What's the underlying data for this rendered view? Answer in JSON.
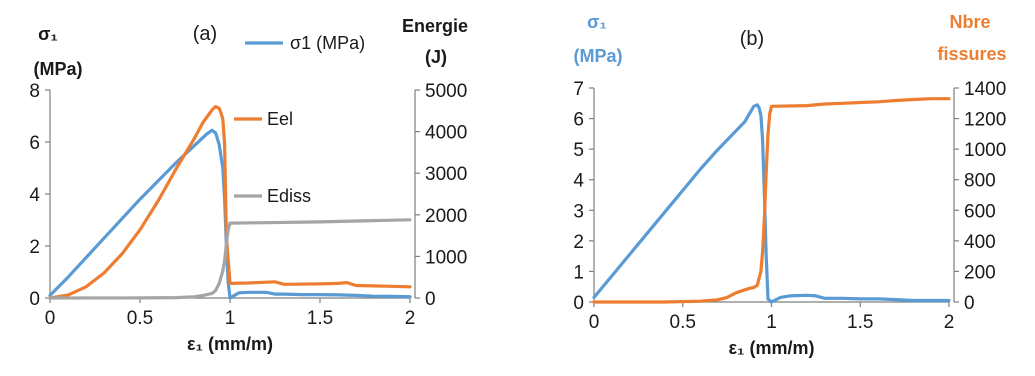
{
  "chart_data": [
    {
      "type": "line",
      "panel_label": "(a)",
      "xlabel": "ε₁ (mm/m)",
      "x_ticks": [
        "0",
        "0.5",
        "1",
        "1.5",
        "2"
      ],
      "xlim": [
        0,
        2
      ],
      "ylabel_left": [
        "σ₁",
        "(MPa)"
      ],
      "ylim_left": [
        0,
        8
      ],
      "y_ticks_left": [
        "0",
        "2",
        "4",
        "6",
        "8"
      ],
      "ylabel_right": [
        "Energie",
        "(J)"
      ],
      "ylim_right": [
        0,
        5000
      ],
      "y_ticks_right": [
        "0",
        "1000",
        "2000",
        "3000",
        "4000",
        "5000"
      ],
      "legend": [
        "σ1 (MPa)"
      ],
      "grid": false,
      "series": [
        {
          "name": "σ1 (MPa)",
          "axis": "left",
          "color": "#5b9bd5",
          "x": [
            0,
            0.1,
            0.2,
            0.3,
            0.4,
            0.5,
            0.6,
            0.7,
            0.8,
            0.87,
            0.9,
            0.92,
            0.94,
            0.96,
            0.97,
            0.98,
            0.99,
            1.0,
            1.05,
            1.1,
            1.2,
            1.25,
            1.3,
            1.4,
            1.5,
            1.6,
            1.7,
            1.8,
            1.9,
            2.0
          ],
          "y": [
            0.1,
            0.8,
            1.55,
            2.3,
            3.05,
            3.8,
            4.5,
            5.2,
            5.85,
            6.3,
            6.45,
            6.35,
            5.9,
            5.0,
            3.8,
            2.0,
            0.6,
            0.0,
            0.2,
            0.22,
            0.22,
            0.15,
            0.15,
            0.13,
            0.13,
            0.12,
            0.1,
            0.07,
            0.06,
            0.05
          ]
        },
        {
          "name": "Eel",
          "axis": "right",
          "color": "#ed7d31",
          "x": [
            0,
            0.1,
            0.2,
            0.3,
            0.4,
            0.5,
            0.6,
            0.7,
            0.8,
            0.85,
            0.9,
            0.92,
            0.94,
            0.95,
            0.96,
            0.97,
            0.98,
            1.0,
            1.1,
            1.25,
            1.3,
            1.5,
            1.6,
            1.65,
            1.7,
            1.8,
            2.0
          ],
          "y": [
            0,
            70,
            270,
            600,
            1060,
            1640,
            2330,
            3100,
            3820,
            4220,
            4520,
            4600,
            4560,
            4450,
            4300,
            3700,
            1500,
            350,
            360,
            390,
            330,
            340,
            350,
            370,
            300,
            290,
            270
          ]
        },
        {
          "name": "Ediss",
          "axis": "right",
          "color": "#a5a5a5",
          "x": [
            0,
            0.5,
            0.7,
            0.8,
            0.85,
            0.9,
            0.92,
            0.94,
            0.96,
            0.97,
            0.98,
            0.99,
            1.0,
            1.2,
            1.5,
            1.8,
            2.0
          ],
          "y": [
            0,
            2,
            10,
            30,
            60,
            110,
            180,
            350,
            650,
            900,
            1300,
            1650,
            1800,
            1810,
            1830,
            1860,
            1880
          ]
        }
      ],
      "annotations": [
        "Eel",
        "Ediss"
      ]
    },
    {
      "type": "line",
      "panel_label": "(b)",
      "xlabel": "ε₁ (mm/m)",
      "x_ticks": [
        "0",
        "0.5",
        "1",
        "1.5",
        "2"
      ],
      "xlim": [
        0,
        2
      ],
      "ylabel_left": [
        "σ₁",
        "(MPa)"
      ],
      "ylim_left": [
        0,
        7
      ],
      "y_ticks_left": [
        "0",
        "1",
        "2",
        "3",
        "4",
        "5",
        "6",
        "7"
      ],
      "ylabel_right": [
        "Nbre",
        "fissures"
      ],
      "ylim_right": [
        0,
        1400
      ],
      "y_ticks_right": [
        "0",
        "200",
        "400",
        "600",
        "800",
        "1000",
        "1200",
        "1400"
      ],
      "grid": false,
      "series": [
        {
          "axis": "left",
          "color": "#5b9bd5",
          "x": [
            0,
            0.1,
            0.2,
            0.3,
            0.4,
            0.5,
            0.6,
            0.7,
            0.8,
            0.85,
            0.9,
            0.92,
            0.93,
            0.94,
            0.95,
            0.96,
            0.97,
            0.98,
            1.0,
            1.05,
            1.1,
            1.2,
            1.25,
            1.3,
            1.4,
            1.5,
            1.6,
            1.7,
            1.8,
            1.9,
            2.0
          ],
          "y": [
            0.15,
            0.85,
            1.55,
            2.25,
            2.95,
            3.65,
            4.35,
            5.0,
            5.6,
            5.9,
            6.4,
            6.45,
            6.35,
            6.1,
            5.3,
            3.5,
            1.5,
            0.1,
            0.0,
            0.15,
            0.2,
            0.22,
            0.2,
            0.12,
            0.12,
            0.1,
            0.1,
            0.08,
            0.05,
            0.05,
            0.05
          ]
        },
        {
          "axis": "right",
          "color": "#ed7d31",
          "x": [
            0,
            0.4,
            0.6,
            0.7,
            0.75,
            0.8,
            0.85,
            0.88,
            0.9,
            0.92,
            0.94,
            0.95,
            0.96,
            0.97,
            0.98,
            0.99,
            1.0,
            1.2,
            1.3,
            1.4,
            1.5,
            1.6,
            1.7,
            1.8,
            1.9,
            2.0
          ],
          "y": [
            0,
            0,
            5,
            15,
            30,
            60,
            80,
            90,
            95,
            110,
            200,
            330,
            550,
            850,
            1100,
            1230,
            1280,
            1285,
            1295,
            1300,
            1305,
            1310,
            1318,
            1325,
            1330,
            1330
          ]
        }
      ]
    }
  ]
}
